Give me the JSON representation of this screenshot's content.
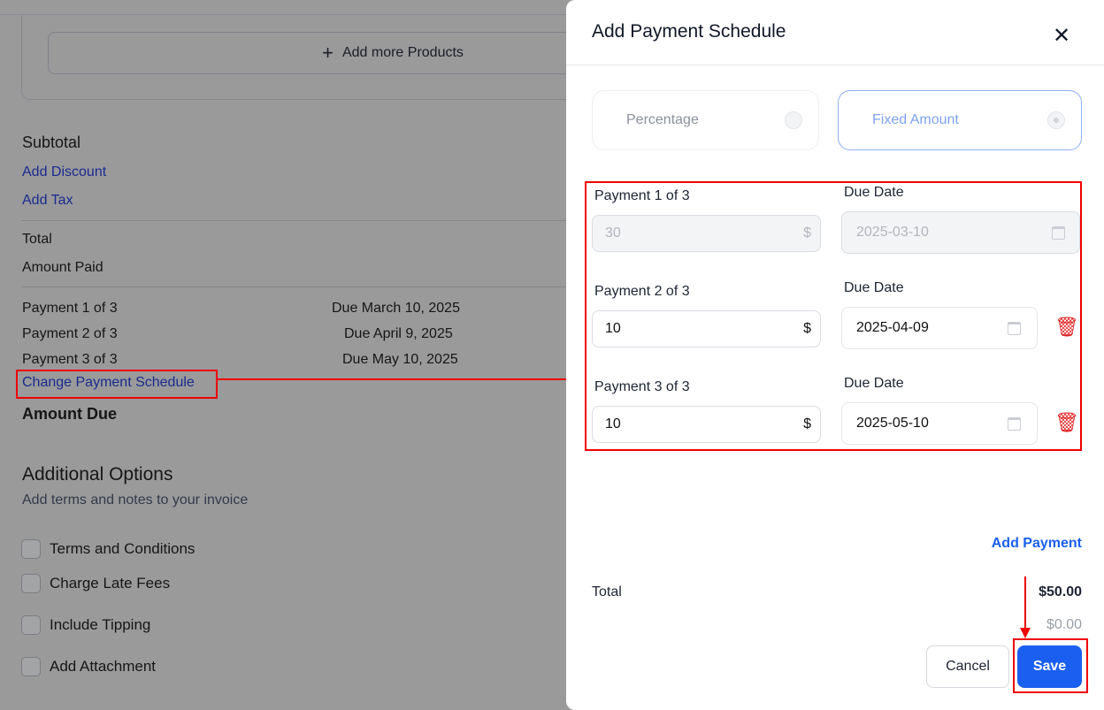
{
  "background": {
    "add_products": "Add more Products",
    "subtotal": "Subtotal",
    "add_discount": "Add Discount",
    "add_tax": "Add Tax",
    "total": "Total",
    "amount_paid": "Amount Paid",
    "payments": [
      {
        "label": "Payment 1 of 3",
        "due": "Due March 10, 2025"
      },
      {
        "label": "Payment 2 of 3",
        "due": "Due April 9, 2025"
      },
      {
        "label": "Payment 3 of 3",
        "due": "Due May 10, 2025"
      }
    ],
    "change_schedule": "Change Payment Schedule",
    "amount_due": "Amount Due",
    "additional_title": "Additional Options",
    "additional_sub": "Add terms and notes to your invoice",
    "options": [
      "Terms and Conditions",
      "Charge Late Fees",
      "Include Tipping",
      "Add Attachment"
    ]
  },
  "panel": {
    "title": "Add Payment Schedule",
    "close": "✕",
    "type_options": [
      {
        "label": "Percentage",
        "selected": false
      },
      {
        "label": "Fixed Amount",
        "selected": true
      }
    ],
    "due_label": "Due Date",
    "currency": "$",
    "rows": [
      {
        "label": "Payment 1 of 3",
        "amount": "30",
        "date": "2025-03-10",
        "disabled": true
      },
      {
        "label": "Payment 2 of 3",
        "amount": "10",
        "date": "2025-04-09",
        "disabled": false
      },
      {
        "label": "Payment 3 of 3",
        "amount": "10",
        "date": "2025-05-10",
        "disabled": false
      }
    ],
    "add_payment": "Add Payment",
    "total_label": "Total",
    "total_value": "$50.00",
    "remaining": "$0.00",
    "cancel": "Cancel",
    "save": "Save"
  },
  "colors": {
    "accent": "#1a5ff0",
    "annotation": "#ee0000",
    "delete": "#e02424"
  }
}
